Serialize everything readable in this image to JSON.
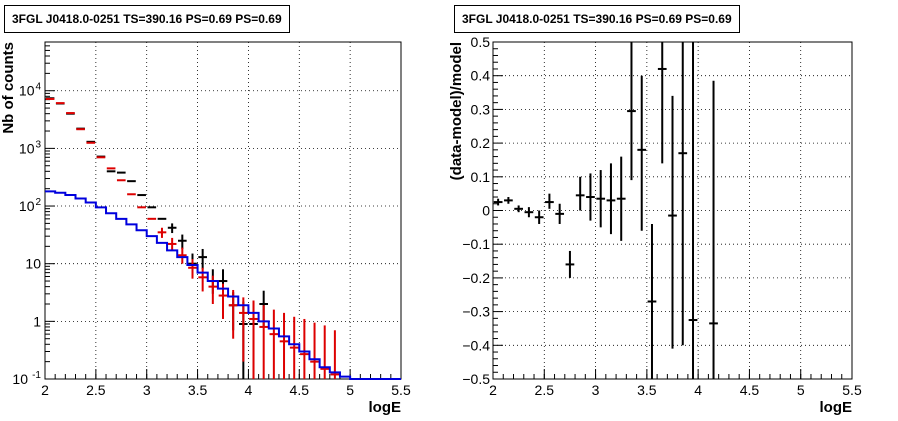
{
  "panels": {
    "left": {
      "title": "3FGL J0418.0-0251 TS=390.16 PS=0.69 PS=0.69"
    },
    "right": {
      "title": "3FGL J0418.0-0251 TS=390.16 PS=0.69 PS=0.69"
    }
  },
  "chart_data": [
    {
      "type": "scatter",
      "title": "3FGL J0418.0-0251 TS=390.16 PS=0.69 PS=0.69",
      "xlabel": "logE",
      "ylabel": "Nb of counts",
      "xlim": [
        2,
        5.5
      ],
      "ylim": [
        0.1,
        70000
      ],
      "y_scale": "log",
      "grid": true,
      "x_ticks": [
        "2",
        "2.5",
        "3",
        "3.5",
        "4",
        "4.5",
        "5",
        "5.5"
      ],
      "y_ticks": [
        {
          "value": 0.1,
          "label": "10",
          "exp": "-1"
        },
        {
          "value": 1,
          "label": "1",
          "exp": ""
        },
        {
          "value": 10,
          "label": "10",
          "exp": ""
        },
        {
          "value": 100,
          "label": "10",
          "exp": "2"
        },
        {
          "value": 1000,
          "label": "10",
          "exp": "3"
        },
        {
          "value": 10000,
          "label": "10",
          "exp": "4"
        }
      ],
      "bin_width": 0.1,
      "series": [
        {
          "color": "#000000",
          "style": "data-points",
          "points": [
            {
              "x": 2.05,
              "y": 7400
            },
            {
              "x": 2.15,
              "y": 6000
            },
            {
              "x": 2.25,
              "y": 4000
            },
            {
              "x": 2.35,
              "y": 2200
            },
            {
              "x": 2.45,
              "y": 1300
            },
            {
              "x": 2.55,
              "y": 720
            },
            {
              "x": 2.65,
              "y": 400
            },
            {
              "x": 2.75,
              "y": 380
            },
            {
              "x": 2.85,
              "y": 270
            },
            {
              "x": 2.95,
              "y": 155
            },
            {
              "x": 3.05,
              "y": 95
            },
            {
              "x": 3.15,
              "y": 60
            },
            {
              "x": 3.25,
              "y": 42,
              "lo": 34,
              "hi": 50
            },
            {
              "x": 3.35,
              "y": 25,
              "lo": 18,
              "hi": 32
            },
            {
              "x": 3.45,
              "y": 10,
              "lo": 6,
              "hi": 15
            },
            {
              "x": 3.55,
              "y": 13,
              "lo": 8,
              "hi": 18
            },
            {
              "x": 3.65,
              "y": 5,
              "lo": 3,
              "hi": 8
            },
            {
              "x": 3.75,
              "y": 5,
              "lo": 3,
              "hi": 8
            },
            {
              "x": 3.85,
              "y": 1.9,
              "lo": 0.7,
              "hi": 3.2
            },
            {
              "x": 3.95,
              "y": 0.9,
              "lo": 0.1,
              "hi": 2.2
            },
            {
              "x": 4.05,
              "y": 0.9,
              "lo": 0.1,
              "hi": 2.2
            },
            {
              "x": 4.15,
              "y": 2,
              "lo": 0.8,
              "hi": 3.4
            }
          ]
        },
        {
          "color": "#dd0000",
          "style": "data-points",
          "points": [
            {
              "x": 2.05,
              "y": 7200
            },
            {
              "x": 2.15,
              "y": 6100
            },
            {
              "x": 2.25,
              "y": 4100
            },
            {
              "x": 2.35,
              "y": 2150
            },
            {
              "x": 2.45,
              "y": 1250
            },
            {
              "x": 2.55,
              "y": 700
            },
            {
              "x": 2.65,
              "y": 450
            },
            {
              "x": 2.75,
              "y": 280
            },
            {
              "x": 2.85,
              "y": 160
            },
            {
              "x": 2.95,
              "y": 95
            },
            {
              "x": 3.05,
              "y": 60
            },
            {
              "x": 3.15,
              "y": 35,
              "lo": 28,
              "hi": 42
            },
            {
              "x": 3.25,
              "y": 22,
              "lo": 17,
              "hi": 28
            },
            {
              "x": 3.35,
              "y": 14,
              "lo": 10,
              "hi": 19
            },
            {
              "x": 3.45,
              "y": 8.5,
              "lo": 5.5,
              "hi": 12
            },
            {
              "x": 3.55,
              "y": 5.8,
              "lo": 3.3,
              "hi": 8.5
            },
            {
              "x": 3.65,
              "y": 4,
              "lo": 2,
              "hi": 6.2
            },
            {
              "x": 3.75,
              "y": 2.8,
              "lo": 1.1,
              "hi": 4.5
            },
            {
              "x": 3.85,
              "y": 1.9,
              "lo": 0.5,
              "hi": 3.5
            },
            {
              "x": 3.95,
              "y": 1.4,
              "lo": 0.2,
              "hi": 2.6
            },
            {
              "x": 4.05,
              "y": 1.1,
              "lo": 0.1,
              "hi": 2.3
            },
            {
              "x": 4.15,
              "y": 0.8,
              "lo": 0.1,
              "hi": 1.9
            },
            {
              "x": 4.25,
              "y": 0.6,
              "lo": 0.1,
              "hi": 1.6
            },
            {
              "x": 4.35,
              "y": 0.45,
              "lo": 0.1,
              "hi": 1.4
            },
            {
              "x": 4.45,
              "y": 0.35,
              "lo": 0.1,
              "hi": 1.2
            },
            {
              "x": 4.55,
              "y": 0.27,
              "lo": 0.1,
              "hi": 1.1
            },
            {
              "x": 4.65,
              "y": 0.2,
              "lo": 0.1,
              "hi": 0.95
            },
            {
              "x": 4.75,
              "y": 0.15,
              "lo": 0.1,
              "hi": 0.85
            },
            {
              "x": 4.85,
              "y": 0.12,
              "lo": 0.1,
              "hi": 0.7
            }
          ]
        },
        {
          "color": "#0000dd",
          "style": "step",
          "bin_edges": [
            2.0,
            2.1,
            2.2,
            2.3,
            2.4,
            2.5,
            2.6,
            2.7,
            2.8,
            2.9,
            3.0,
            3.1,
            3.2,
            3.3,
            3.4,
            3.5,
            3.6,
            3.7,
            3.8,
            3.9,
            4.0,
            4.1,
            4.2,
            4.3,
            4.4,
            4.5,
            4.6,
            4.7,
            4.8,
            4.9,
            5.0,
            5.5
          ],
          "values": [
            180,
            170,
            155,
            135,
            115,
            95,
            75,
            60,
            48,
            38,
            30,
            23,
            17,
            13,
            9.5,
            7,
            5,
            3.7,
            2.7,
            1.9,
            1.4,
            1.0,
            0.75,
            0.55,
            0.4,
            0.3,
            0.22,
            0.16,
            0.13,
            0.11,
            0.1
          ]
        }
      ]
    },
    {
      "type": "scatter",
      "title": "3FGL J0418.0-0251 TS=390.16 PS=0.69 PS=0.69",
      "xlabel": "logE",
      "ylabel": "(data-model)/model",
      "xlim": [
        2,
        5.5
      ],
      "ylim": [
        -0.5,
        0.5
      ],
      "grid": true,
      "x_ticks": [
        "2",
        "2.5",
        "3",
        "3.5",
        "4",
        "4.5",
        "5",
        "5.5"
      ],
      "y_ticks": [
        "−0.5",
        "−0.4",
        "−0.3",
        "−0.2",
        "−0.1",
        "0",
        "0.1",
        "0.2",
        "0.3",
        "0.4",
        "0.5"
      ],
      "bin_width": 0.1,
      "series": [
        {
          "color": "#000000",
          "points": [
            {
              "x": 2.05,
              "y": 0.025,
              "lo": 0.015,
              "hi": 0.035
            },
            {
              "x": 2.15,
              "y": 0.03,
              "lo": 0.02,
              "hi": 0.04
            },
            {
              "x": 2.25,
              "y": 0.005,
              "lo": -0.005,
              "hi": 0.015
            },
            {
              "x": 2.35,
              "y": -0.005,
              "lo": -0.02,
              "hi": 0.01
            },
            {
              "x": 2.45,
              "y": -0.02,
              "lo": -0.04,
              "hi": 0.0
            },
            {
              "x": 2.55,
              "y": 0.025,
              "lo": 0.005,
              "hi": 0.05
            },
            {
              "x": 2.65,
              "y": -0.01,
              "lo": -0.04,
              "hi": 0.02
            },
            {
              "x": 2.75,
              "y": -0.16,
              "lo": -0.2,
              "hi": -0.12
            },
            {
              "x": 2.85,
              "y": 0.045,
              "lo": 0.0,
              "hi": 0.1
            },
            {
              "x": 2.95,
              "y": 0.04,
              "lo": -0.03,
              "hi": 0.11
            },
            {
              "x": 3.05,
              "y": 0.035,
              "lo": -0.05,
              "hi": 0.12
            },
            {
              "x": 3.15,
              "y": 0.03,
              "lo": -0.07,
              "hi": 0.14
            },
            {
              "x": 3.25,
              "y": 0.035,
              "lo": -0.09,
              "hi": 0.16
            },
            {
              "x": 3.35,
              "y": 0.295,
              "lo": 0.09,
              "hi": 0.5
            },
            {
              "x": 3.45,
              "y": 0.18,
              "lo": -0.06,
              "hi": 0.4
            },
            {
              "x": 3.55,
              "y": -0.27,
              "lo": -0.5,
              "hi": -0.04
            },
            {
              "x": 3.65,
              "y": 0.42,
              "lo": 0.14,
              "hi": 0.5
            },
            {
              "x": 3.75,
              "y": -0.015,
              "lo": -0.41,
              "hi": 0.34
            },
            {
              "x": 3.85,
              "y": 0.17,
              "lo": -0.4,
              "hi": 0.5
            },
            {
              "x": 3.95,
              "y": -0.325,
              "lo": -0.5,
              "hi": 0.5
            },
            {
              "x": 4.15,
              "y": -0.335,
              "lo": -0.5,
              "hi": 0.385
            }
          ]
        }
      ]
    }
  ]
}
